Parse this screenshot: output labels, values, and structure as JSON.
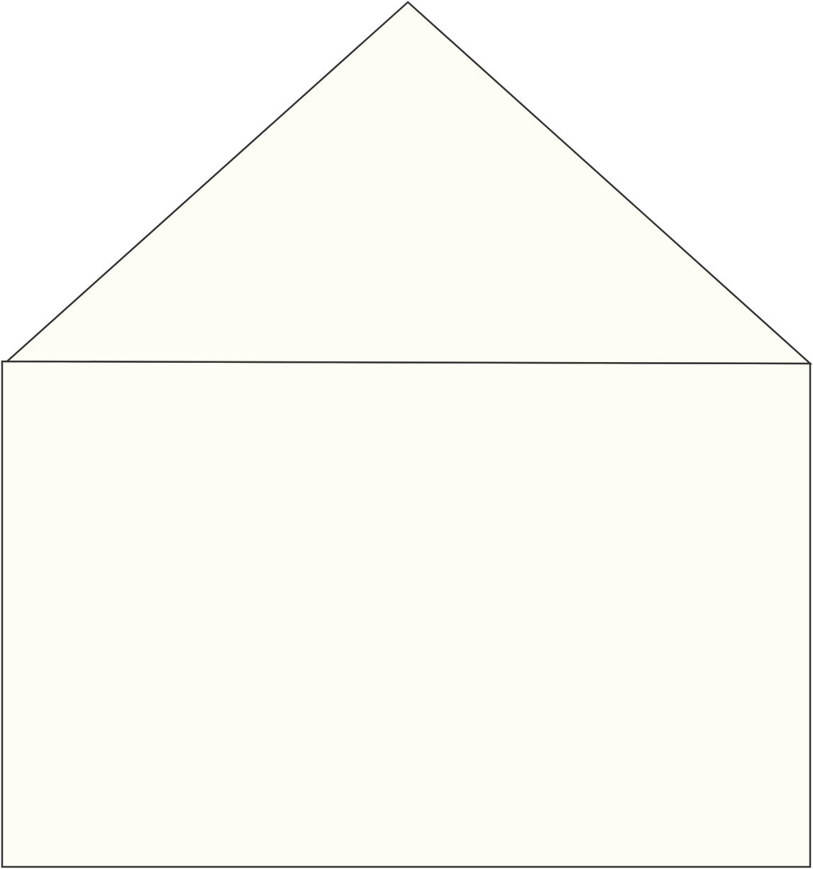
{
  "colors": {
    "background": "#ffffff",
    "fill": "#fdfdf5",
    "stroke": "#333333"
  },
  "shapes": [
    {
      "name": "roof-triangle",
      "kind": "triangle"
    },
    {
      "name": "wall-rectangle",
      "kind": "rectangle"
    }
  ]
}
